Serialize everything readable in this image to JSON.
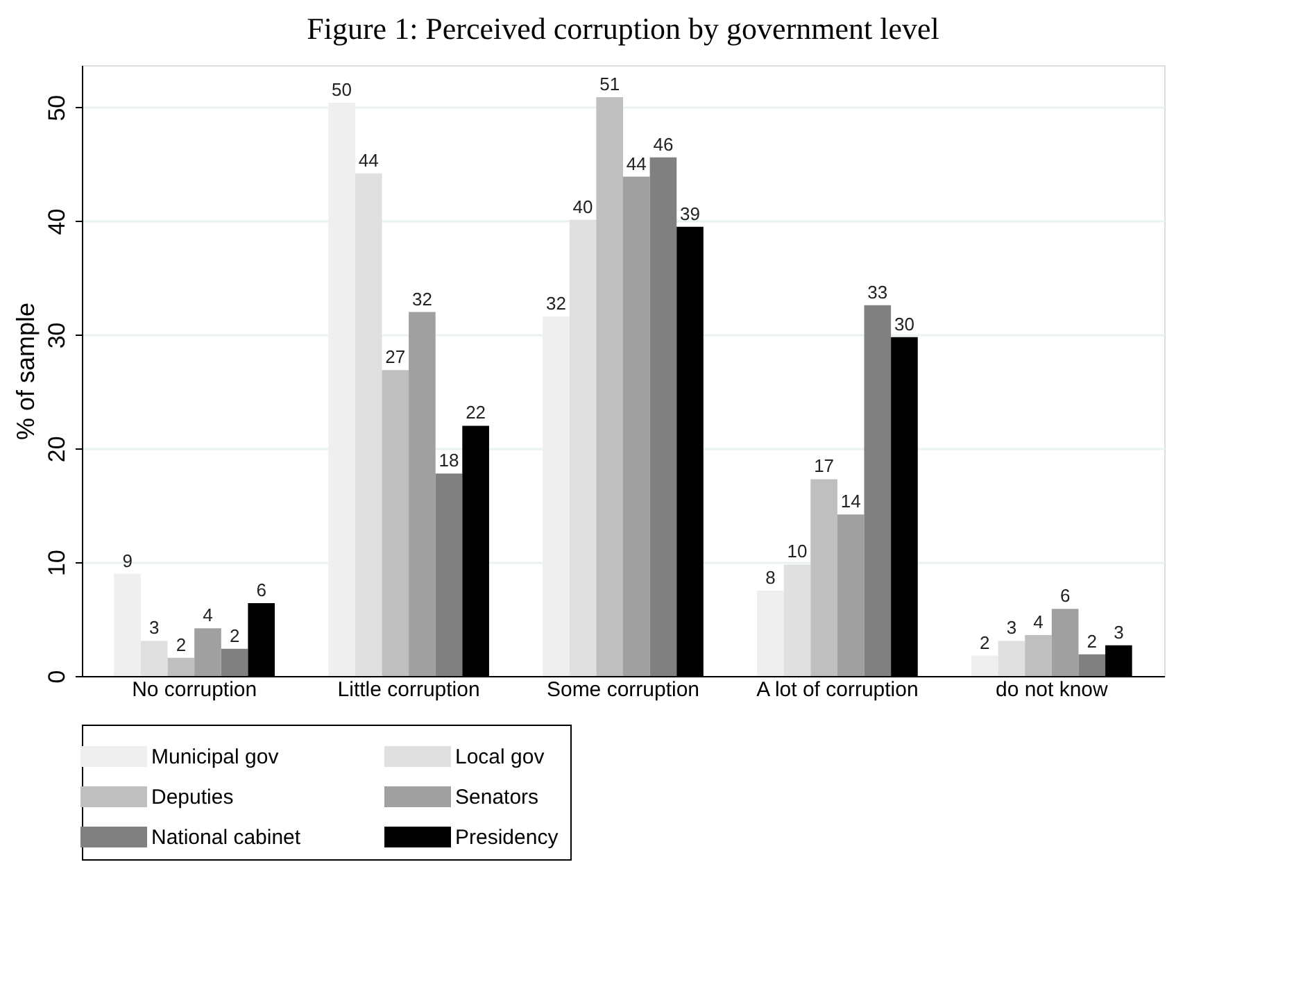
{
  "chart_data": {
    "type": "bar",
    "title": "Figure 1: Perceived corruption by government level",
    "ylabel": "% of sample",
    "categories": [
      "No corruption",
      "Little corruption",
      "Some corruption",
      "A lot of corruption",
      "do not know"
    ],
    "series": [
      {
        "name": "Municipal gov",
        "color": "#efefef",
        "values": [
          9.0,
          50.4,
          31.6,
          7.5,
          1.8
        ],
        "value_labels": [
          "9",
          "50",
          "32",
          "8",
          "2"
        ]
      },
      {
        "name": "Local gov",
        "color": "#e0e0e0",
        "values": [
          3.1,
          44.2,
          40.1,
          9.8,
          3.1
        ],
        "value_labels": [
          "3",
          "44",
          "40",
          "10",
          "3"
        ]
      },
      {
        "name": "Deputies",
        "color": "#bfbfbf",
        "values": [
          1.6,
          26.9,
          50.9,
          17.3,
          3.6
        ],
        "value_labels": [
          "2",
          "27",
          "51",
          "17",
          "4"
        ]
      },
      {
        "name": "Senators",
        "color": "#a0a0a0",
        "values": [
          4.2,
          32.0,
          43.9,
          14.2,
          5.9
        ],
        "value_labels": [
          "4",
          "32",
          "44",
          "14",
          "6"
        ]
      },
      {
        "name": "National cabinet",
        "color": "#808080",
        "values": [
          2.4,
          17.8,
          45.6,
          32.6,
          1.9
        ],
        "value_labels": [
          "2",
          "18",
          "46",
          "33",
          "2"
        ]
      },
      {
        "name": "Presidency",
        "color": "#000000",
        "values": [
          6.4,
          22.0,
          39.5,
          29.8,
          2.7
        ],
        "value_labels": [
          "6",
          "22",
          "39",
          "30",
          "3"
        ]
      }
    ],
    "ylim": [
      0,
      53.7
    ],
    "yticks": [
      0,
      10,
      20,
      30,
      40,
      50
    ],
    "grid": "y",
    "legend": "bottom"
  }
}
